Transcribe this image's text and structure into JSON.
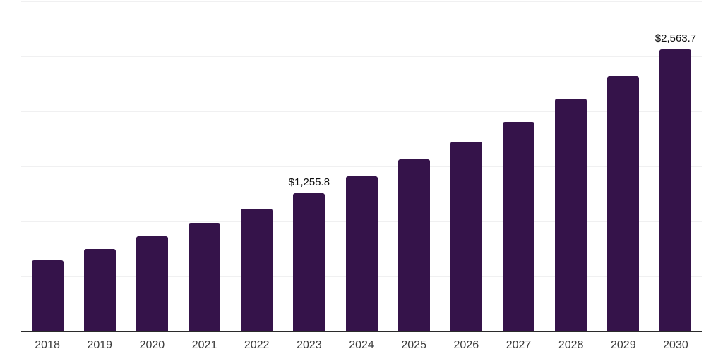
{
  "chart_data": {
    "type": "bar",
    "title": "",
    "xlabel": "",
    "ylabel": "",
    "categories": [
      "2018",
      "2019",
      "2020",
      "2021",
      "2022",
      "2023",
      "2024",
      "2025",
      "2026",
      "2027",
      "2028",
      "2029",
      "2030"
    ],
    "values": [
      650,
      748,
      865,
      986,
      1118,
      1255.8,
      1409,
      1562,
      1722,
      1907,
      2113,
      2322,
      2563.7
    ],
    "value_labels": [
      "",
      "",
      "",
      "",
      "",
      "$1,255.8",
      "",
      "",
      "",
      "",
      "",
      "",
      "$2,563.7"
    ],
    "ylim": [
      0,
      3000
    ],
    "gridline_step": 500,
    "grid": "horizontal",
    "y_tick_labels_visible": false,
    "legend_position": "none",
    "styles": {
      "background": "#ffffff",
      "bar_color": "#35134a",
      "axis_color": "#2b2b2b",
      "gridline_color": "#f0f0f1",
      "data_label_color": "#111111",
      "tick_label_color": "#3c3c3c"
    }
  }
}
